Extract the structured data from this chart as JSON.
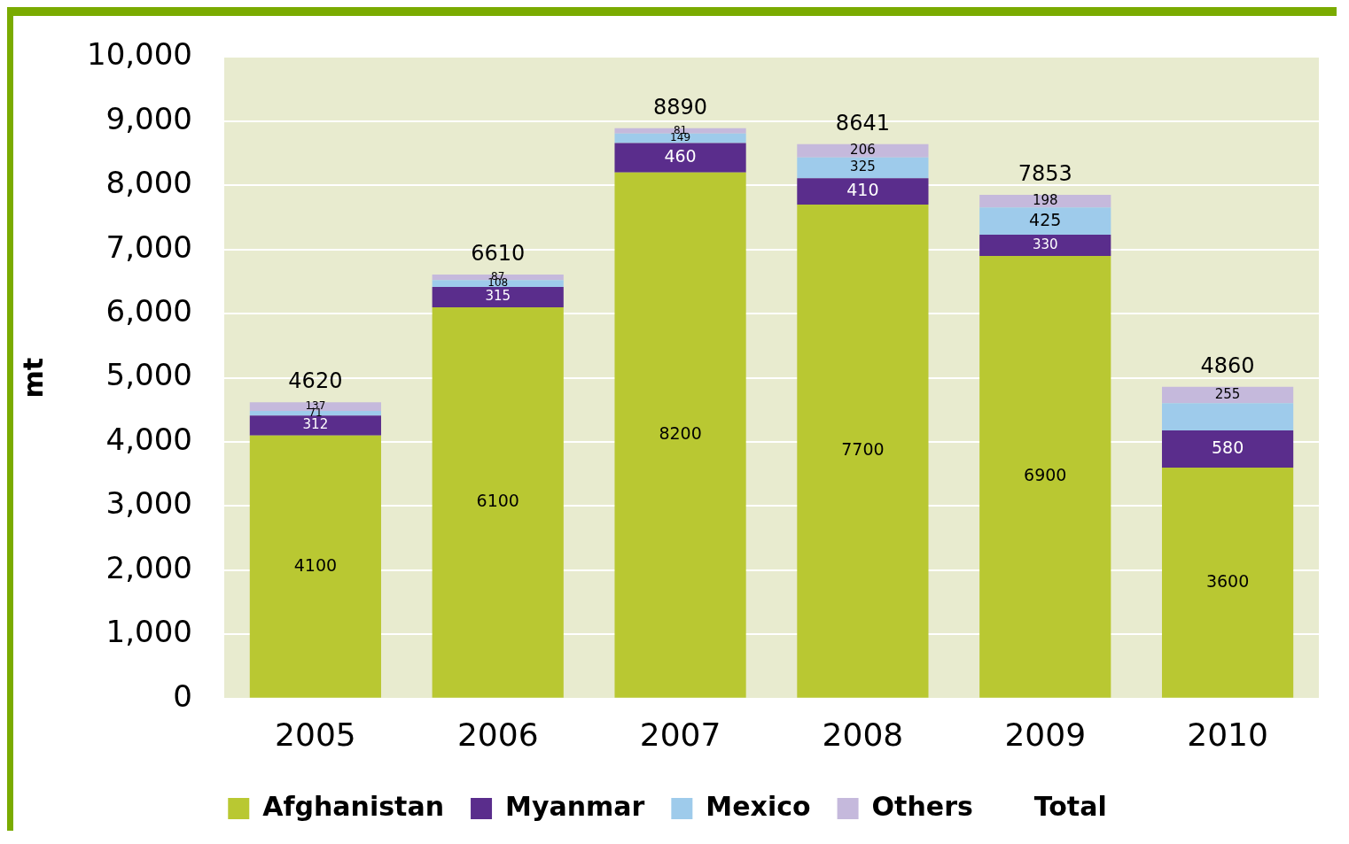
{
  "chart_data": {
    "type": "bar",
    "stacked": true,
    "ylabel": "mt",
    "categories": [
      "2005",
      "2006",
      "2007",
      "2008",
      "2009",
      "2010"
    ],
    "series": [
      {
        "name": "Afghanistan",
        "color": "#b9c832",
        "values": [
          4100,
          6100,
          8200,
          7700,
          6900,
          3600
        ],
        "data_labels": true
      },
      {
        "name": "Myanmar",
        "color": "#5a2d8c",
        "values": [
          312,
          315,
          460,
          410,
          330,
          580
        ],
        "data_labels": true
      },
      {
        "name": "Mexico",
        "color": "#9ecbeb",
        "values": [
          71,
          108,
          149,
          325,
          425,
          425
        ],
        "value_labels": [
          "71",
          "108",
          "149",
          "325",
          "425",
          null
        ]
      },
      {
        "name": "Others",
        "color": "#c5b9dc",
        "values": [
          137,
          87,
          81,
          206,
          198,
          255
        ],
        "data_labels": true
      },
      {
        "name": "Total",
        "values": [
          null,
          null,
          null,
          null,
          null,
          null
        ]
      }
    ],
    "totals": [
      "4620",
      "6610",
      "8890",
      "8641",
      "7853",
      "4860"
    ],
    "ylim": [
      0,
      10000
    ],
    "yticks": [
      0,
      {
        "value": 1000,
        "label": "1,000"
      },
      {
        "value": 2000,
        "label": "2,000"
      },
      {
        "value": 3000,
        "label": "3,000"
      },
      {
        "value": 4000,
        "label": "4,000"
      },
      {
        "value": 5000,
        "label": "5,000"
      },
      {
        "value": 6000,
        "label": "6,000"
      },
      {
        "value": 7000,
        "label": "7,000"
      },
      {
        "value": 8000,
        "label": "8,000"
      },
      {
        "value": 9000,
        "label": "9,000"
      },
      {
        "value": 10000,
        "label": "10,000"
      }
    ],
    "grid": "y",
    "legend": "bottom"
  }
}
